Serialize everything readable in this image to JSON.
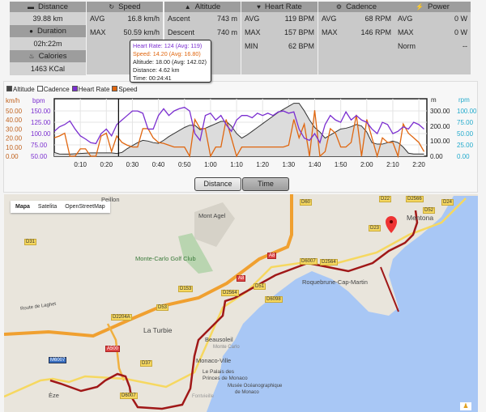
{
  "stats": {
    "distance": {
      "label": "Distance",
      "value": "39.88 km"
    },
    "duration": {
      "label": "Duration",
      "value": "02h:22m"
    },
    "calories": {
      "label": "Calories",
      "value": "1463 KCal"
    },
    "speed": {
      "label": "Speed",
      "rows": [
        [
          "AVG",
          "16.8 km/h"
        ],
        [
          "MAX",
          "50.59 km/h"
        ]
      ]
    },
    "altitude": {
      "label": "Altitude",
      "rows": [
        [
          "Ascent",
          "743 m"
        ],
        [
          "Descent",
          "740 m"
        ]
      ]
    },
    "heart_rate": {
      "label": "Heart Rate",
      "rows": [
        [
          "AVG",
          "119 BPM"
        ],
        [
          "MAX",
          "157 BPM"
        ],
        [
          "MIN",
          "62 BPM"
        ]
      ]
    },
    "cadence": {
      "label": "Cadence",
      "rows": [
        [
          "AVG",
          "68 RPM"
        ],
        [
          "MAX",
          "146 RPM"
        ]
      ]
    },
    "power": {
      "label": "Power",
      "rows": [
        [
          "AVG",
          "0 W"
        ],
        [
          "MAX",
          "0 W"
        ],
        [
          "Norm",
          "--"
        ]
      ]
    }
  },
  "tooltip": {
    "hr": "Heart Rate: 124 (Avg: 119)",
    "speed": "Speed: 14.20 (Avg: 16.80)",
    "alt": "Altitude: 18.00 (Avg: 142.02)",
    "dist": "Distance: 4.62 km",
    "time": "Time: 00:24:41"
  },
  "buttons": {
    "distance": "Distance",
    "time": "Time"
  },
  "colors": {
    "hr": "#7b2fd0",
    "speed": "#e0660f",
    "alt": "#333333",
    "cad": "#22aacc",
    "route": "#a01818",
    "sea": "#a8c7f5"
  },
  "chart_data": {
    "type": "line",
    "legend": [
      "Altitude",
      "Cadence",
      "Heart Rate",
      "Speed"
    ],
    "x_minutes_step": 2,
    "xticks": [
      "0:10",
      "0:20",
      "0:30",
      "0:40",
      "0:50",
      "1:00",
      "1:10",
      "1:20",
      "1:30",
      "1:40",
      "1:50",
      "2:00",
      "2:10",
      "2:20"
    ],
    "axes": {
      "speed": {
        "unit": "km/h",
        "ticks": [
          "50.00",
          "40.00",
          "30.00",
          "20.00",
          "10.00",
          "0.00"
        ],
        "range": [
          0,
          62.5
        ]
      },
      "hr": {
        "unit": "bpm",
        "ticks": [
          "150.00",
          "125.00",
          "100.00",
          "75.00",
          "50.00"
        ],
        "range": [
          50,
          177
        ]
      },
      "alt": {
        "unit": "m",
        "ticks": [
          "300.00",
          "200.00",
          "100.00",
          "0.00"
        ],
        "range": [
          0,
          380
        ]
      },
      "cad": {
        "unit": "rpm",
        "ticks": [
          "100.00",
          "75.00",
          "50.00",
          "25.00",
          "0.00"
        ],
        "range": [
          0,
          120
        ]
      }
    },
    "cursor_minutes": 24.68,
    "series": [
      {
        "name": "Heart Rate",
        "values": [
          105,
          115,
          120,
          128,
          110,
          95,
          88,
          80,
          78,
          100,
          110,
          95,
          120,
          130,
          140,
          150,
          150,
          145,
          110,
          110,
          140,
          155,
          140,
          150,
          155,
          158,
          150,
          100,
          85,
          140,
          145,
          130,
          140,
          120,
          105,
          130,
          140,
          140,
          135,
          145,
          140,
          145,
          140,
          148,
          150,
          145,
          148,
          110,
          90,
          85,
          100,
          80,
          120,
          140,
          130,
          125,
          148,
          130,
          140,
          130,
          125,
          110,
          100,
          125,
          120,
          100,
          105,
          115,
          110,
          125,
          120,
          110
        ]
      },
      {
        "name": "Speed",
        "values": [
          20,
          22,
          25,
          0,
          0,
          8,
          8,
          0,
          0,
          22,
          25,
          5,
          22,
          15,
          12,
          10,
          10,
          30,
          30,
          20,
          15,
          14,
          12,
          10,
          10,
          10,
          0,
          40,
          30,
          30,
          0,
          10,
          10,
          40,
          20,
          0,
          10,
          10,
          10,
          10,
          10,
          10,
          10,
          10,
          10,
          12,
          40,
          20,
          35,
          0,
          50,
          0,
          5,
          30,
          25,
          10,
          10,
          15,
          45,
          0,
          40,
          20,
          0,
          20,
          15,
          15,
          0,
          35,
          25,
          20,
          15,
          5
        ]
      },
      {
        "name": "Altitude",
        "values": [
          25,
          15,
          14,
          14,
          16,
          18,
          20,
          22,
          22,
          22,
          22,
          22,
          18,
          25,
          50,
          70,
          90,
          105,
          100,
          90,
          85,
          105,
          130,
          150,
          170,
          190,
          205,
          205,
          175,
          185,
          200,
          215,
          230,
          230,
          200,
          150,
          120,
          140,
          165,
          190,
          215,
          240,
          265,
          290,
          310,
          330,
          350,
          350,
          300,
          240,
          190,
          160,
          120,
          140,
          160,
          180,
          185,
          195,
          210,
          200,
          160,
          90,
          80,
          80,
          90,
          100,
          90,
          60,
          20,
          15,
          15,
          15
        ]
      }
    ]
  },
  "map": {
    "types": [
      "Mapa",
      "Satelita",
      "OpenStreetMap"
    ],
    "places": [
      "Mont Agel",
      "Monte-Carlo Golf Club",
      "La Turbie",
      "Route de Laghet",
      "Beausoleil",
      "Monte Carlo",
      "Monaco-Ville",
      "Le Palais des",
      "Princes de Monaco",
      "Musée Océanographique",
      "de Monaco",
      "Fontvieille",
      "Roquebrune-Cap-Martin",
      "Mentona",
      "Èze",
      "Peillon"
    ],
    "roads": [
      "D31",
      "D153",
      "D2564",
      "A8",
      "D51",
      "D6098",
      "D53",
      "D2204A",
      "A500",
      "D37",
      "D6007",
      "D60",
      "D23",
      "D22",
      "D2566",
      "D52",
      "D24",
      "D6007",
      "D2564",
      "A8",
      "M6007"
    ]
  }
}
